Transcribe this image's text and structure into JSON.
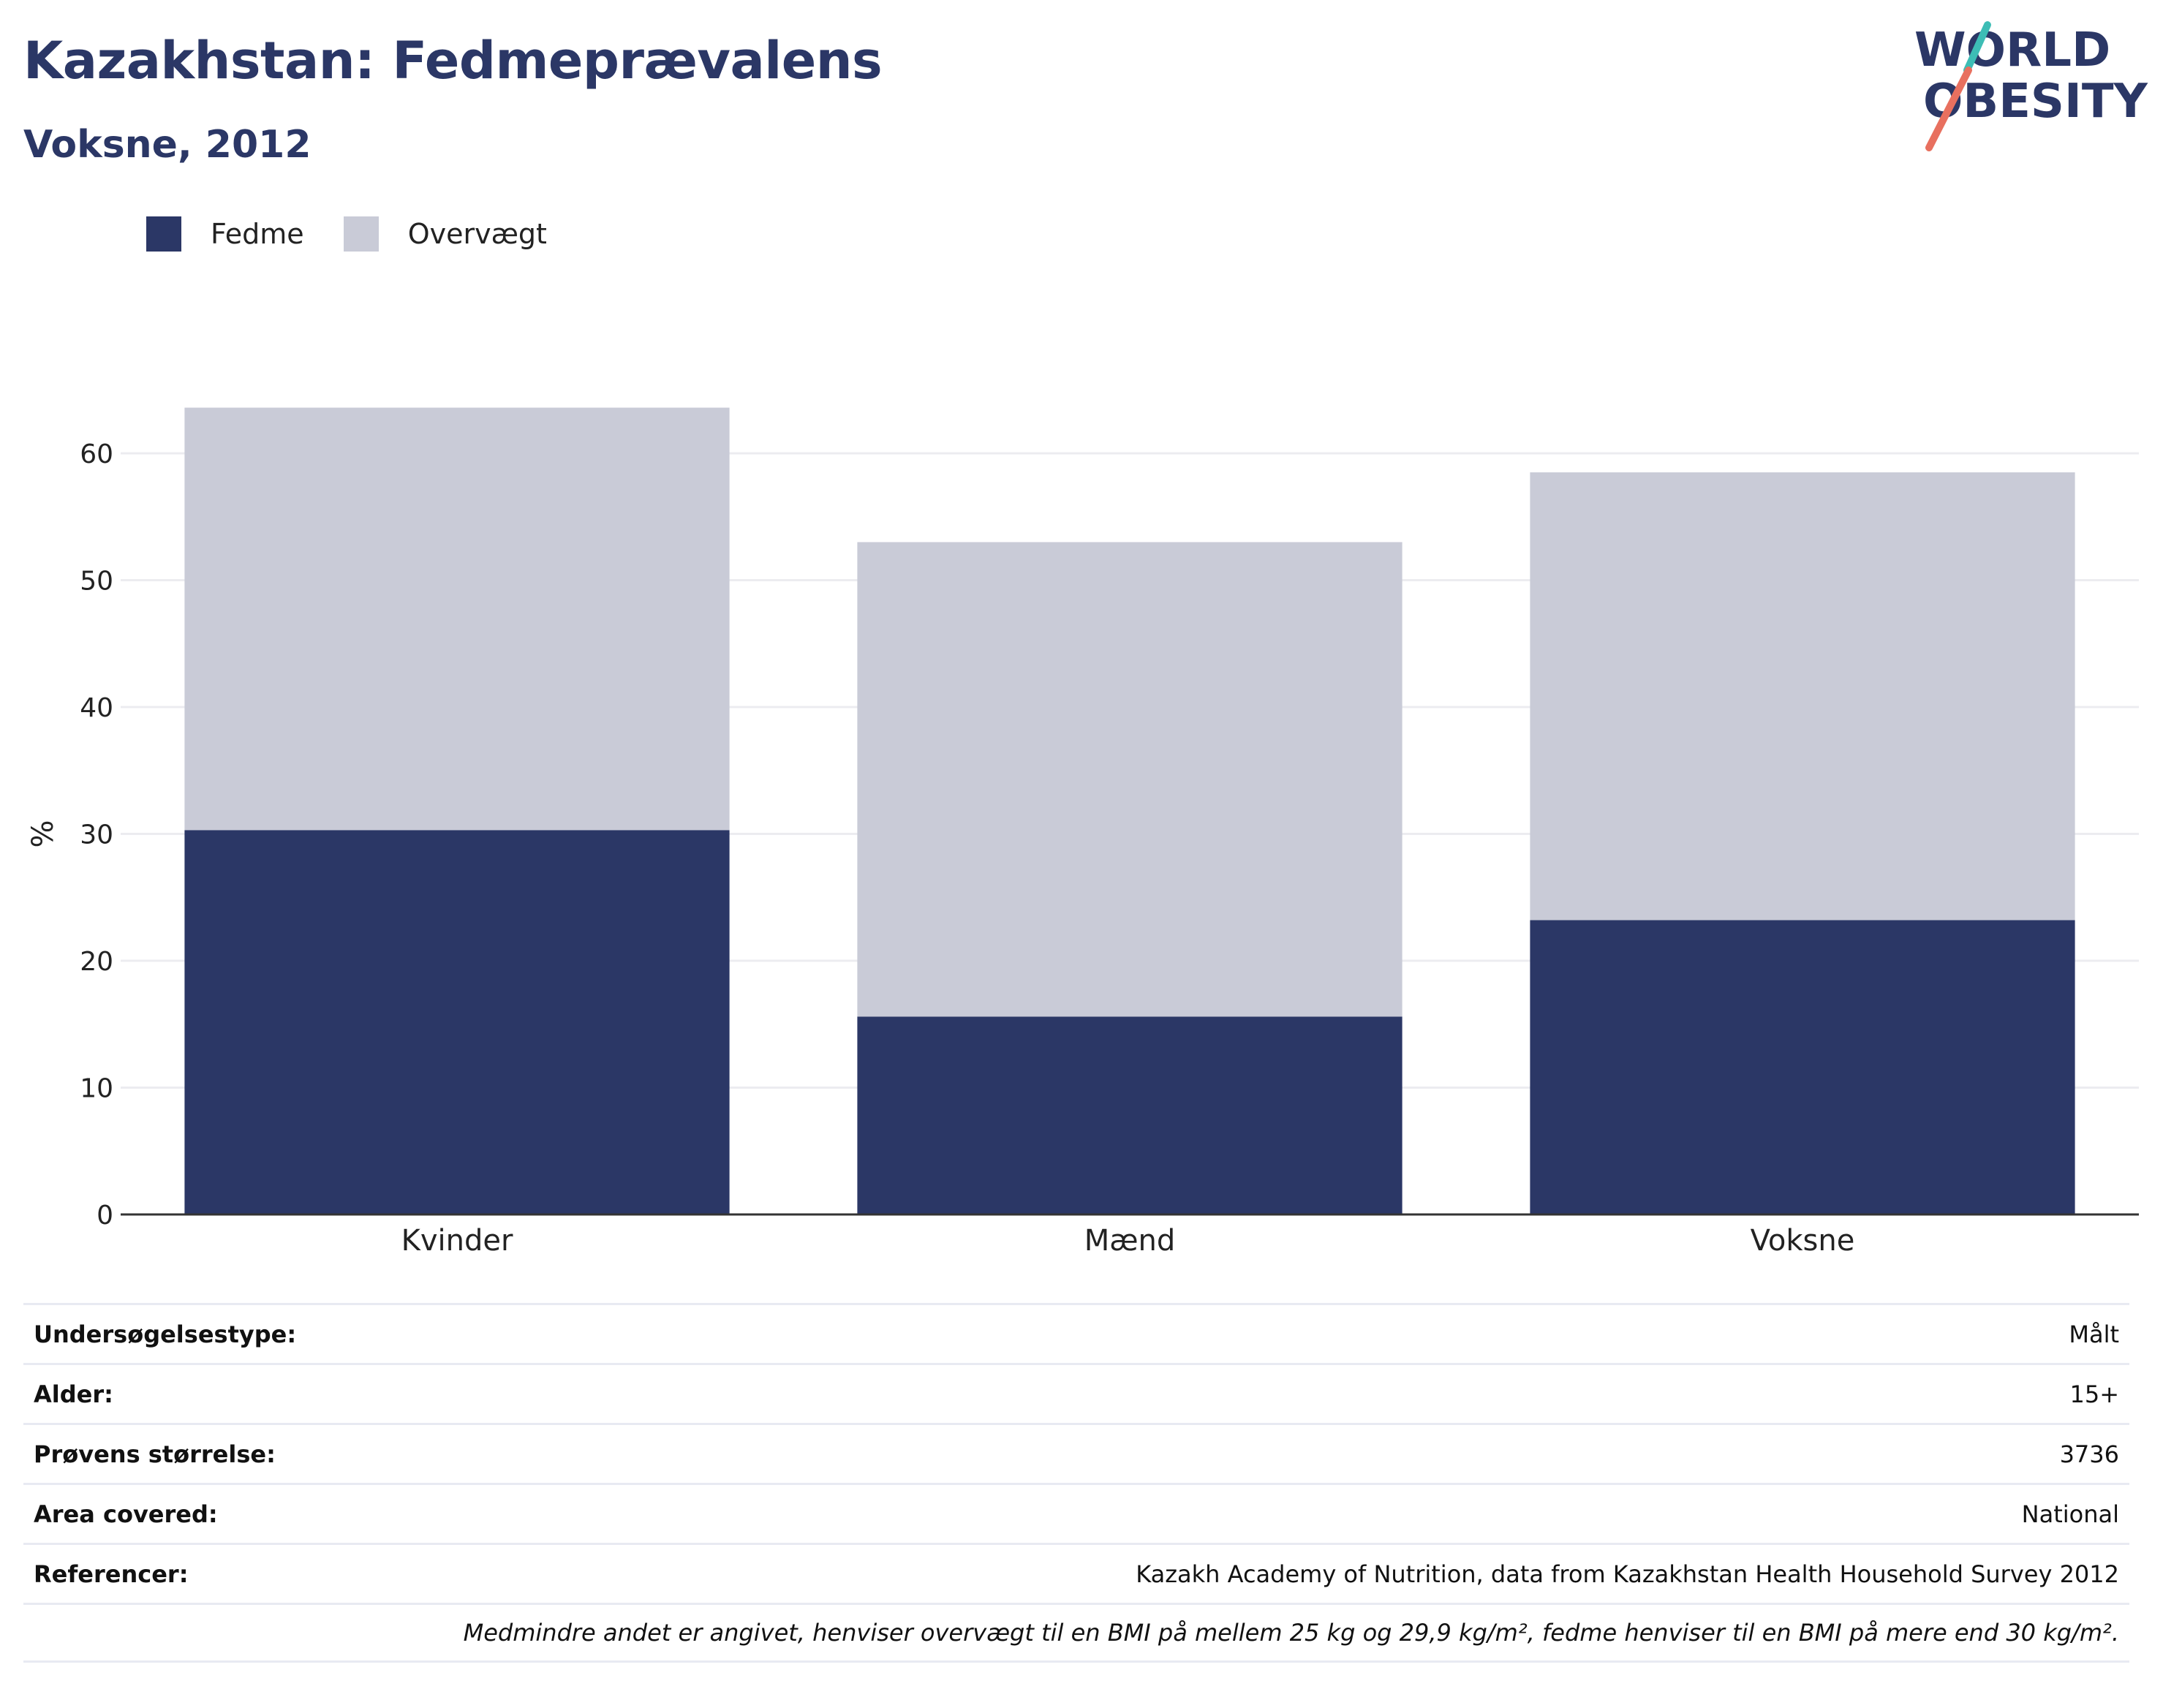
{
  "header": {
    "title": "Kazakhstan: Fedmeprævalens",
    "subtitle": "Voksne, 2012"
  },
  "logo": {
    "line1": "WORLD",
    "line2": "OBESITY",
    "colors": {
      "text": "#2b3766",
      "slash_top": "#3dbdb5",
      "slash_bottom": "#e8705f"
    }
  },
  "legend": [
    {
      "label": "Fedme",
      "color": "#2b3766"
    },
    {
      "label": "Overvægt",
      "color": "#c9cbd7"
    }
  ],
  "chart_data": {
    "type": "bar",
    "stacked": true,
    "categories": [
      "Kvinder",
      "Mænd",
      "Voksne"
    ],
    "series": [
      {
        "name": "Fedme",
        "values": [
          30.3,
          15.6,
          23.2
        ],
        "color": "#2b3766"
      },
      {
        "name": "Overvægt",
        "values": [
          33.3,
          37.4,
          35.3
        ],
        "color": "#c9cbd7"
      }
    ],
    "ylabel": "%",
    "ylim": [
      0,
      64
    ],
    "yticks": [
      0,
      10,
      20,
      30,
      40,
      50,
      60
    ],
    "grid": true,
    "legend_position": "top-left"
  },
  "metadata": [
    {
      "key": "Undersøgelsestype:",
      "value": "Målt"
    },
    {
      "key": "Alder:",
      "value": "15+"
    },
    {
      "key": "Prøvens størrelse:",
      "value": "3736"
    },
    {
      "key": "Area covered:",
      "value": "National"
    },
    {
      "key": "Referencer:",
      "value": "Kazakh Academy of Nutrition, data from Kazakhstan Health Household Survey 2012"
    }
  ],
  "footnote": "Medmindre andet er angivet, henviser overvægt til en BMI på mellem 25 kg og 29,9 kg/m², fedme henviser til en BMI på mere end 30 kg/m²."
}
